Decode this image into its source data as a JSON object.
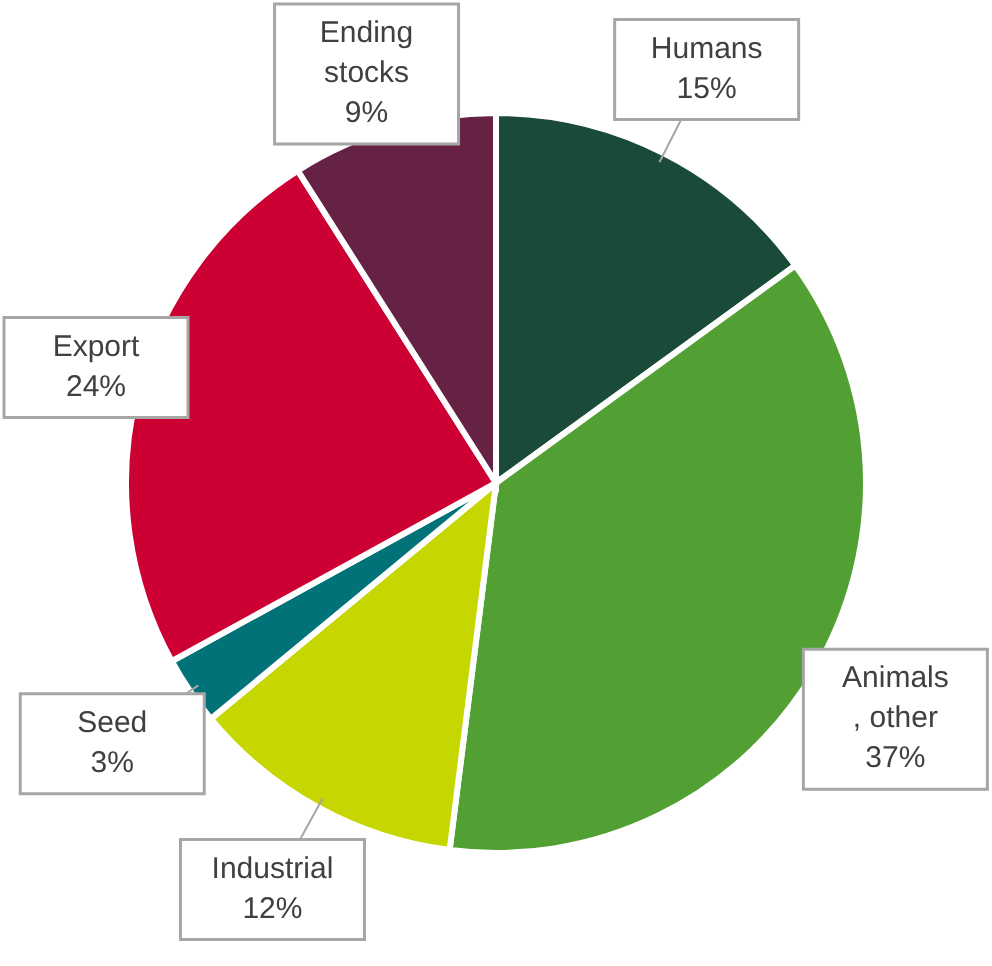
{
  "chart_data": {
    "type": "pie",
    "categories": [
      "Humans",
      "Animals\n, other",
      "Industrial",
      "Seed",
      "Export",
      "Ending\nstocks"
    ],
    "values": [
      15,
      37,
      12,
      3,
      24,
      9
    ],
    "colors": [
      "#1a4a38",
      "#52a033",
      "#c6d600",
      "#007278",
      "#cc0033",
      "#662244"
    ],
    "value_labels": [
      "15%",
      "37%",
      "12%",
      "3%",
      "24%",
      "9%"
    ]
  }
}
